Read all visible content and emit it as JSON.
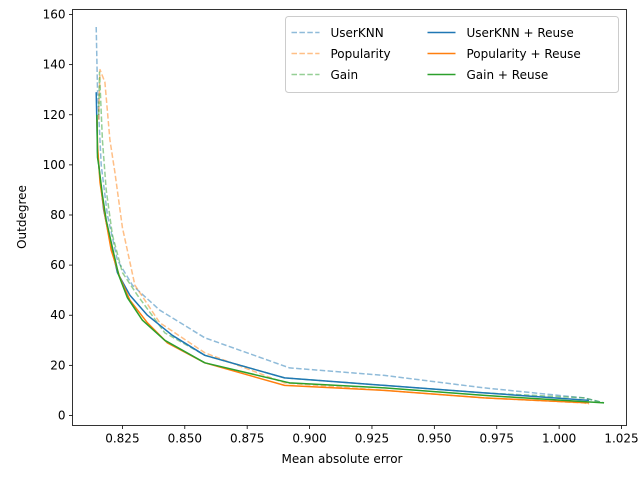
{
  "chart_data": {
    "type": "line",
    "title": "",
    "xlabel": "Mean absolute error",
    "ylabel": "Outdegree",
    "xlim": [
      0.805,
      1.027
    ],
    "ylim": [
      -4,
      162
    ],
    "xticks": [
      0.825,
      0.85,
      0.875,
      0.9,
      0.925,
      0.95,
      0.975,
      1.0,
      1.025
    ],
    "xtick_labels": [
      "0.825",
      "0.850",
      "0.875",
      "0.900",
      "0.925",
      "0.950",
      "0.975",
      "1.000",
      "1.025"
    ],
    "yticks": [
      0,
      20,
      40,
      60,
      80,
      100,
      120,
      140,
      160
    ],
    "ytick_labels": [
      "0",
      "20",
      "40",
      "60",
      "80",
      "100",
      "120",
      "140",
      "160"
    ],
    "grid": false,
    "legend": {
      "position": "top-right",
      "columns": 2
    },
    "series": [
      {
        "name": "UserKNN",
        "color": "#1f77b4",
        "dashed": true,
        "faded": true,
        "x": [
          0.8145,
          0.815,
          0.8165,
          0.819,
          0.823,
          0.829,
          0.84,
          0.858,
          0.892,
          0.93,
          0.97,
          1.01,
          1.018
        ],
        "y": [
          155,
          130,
          100,
          80,
          62,
          52,
          42,
          31,
          19,
          16,
          11,
          7,
          5
        ]
      },
      {
        "name": "Popularity",
        "color": "#ff7f0e",
        "dashed": true,
        "faded": true,
        "x": [
          0.8155,
          0.816,
          0.818,
          0.82,
          0.822,
          0.825,
          0.83,
          0.84,
          0.858,
          0.89,
          0.93,
          0.97,
          1.01,
          1.012
        ],
        "y": [
          118,
          138,
          133,
          110,
          97,
          75,
          52,
          37,
          25,
          13,
          10,
          7,
          5,
          4.5
        ]
      },
      {
        "name": "Gain",
        "color": "#2ca02c",
        "dashed": true,
        "faded": true,
        "x": [
          0.8155,
          0.8158,
          0.817,
          0.8185,
          0.821,
          0.825,
          0.831,
          0.842,
          0.858,
          0.89,
          0.93,
          0.97,
          1.01,
          1.018
        ],
        "y": [
          120,
          137,
          110,
          90,
          72,
          57,
          48,
          33,
          24,
          15,
          12,
          9,
          7,
          5
        ]
      },
      {
        "name": "UserKNN + Reuse",
        "color": "#1f77b4",
        "dashed": false,
        "faded": false,
        "x": [
          0.8145,
          0.815,
          0.816,
          0.8175,
          0.82,
          0.823,
          0.828,
          0.835,
          0.845,
          0.858,
          0.89,
          0.93,
          0.97,
          1.012
        ],
        "y": [
          129,
          105,
          95,
          82,
          70,
          57,
          48,
          40,
          32,
          24,
          15,
          12,
          9,
          6
        ]
      },
      {
        "name": "Popularity + Reuse",
        "color": "#ff7f0e",
        "dashed": false,
        "faded": false,
        "x": [
          0.8148,
          0.815,
          0.816,
          0.818,
          0.8205,
          0.824,
          0.828,
          0.835,
          0.843,
          0.858,
          0.89,
          0.93,
          0.97,
          1.012
        ],
        "y": [
          118,
          108,
          93,
          80,
          66,
          55,
          46,
          37,
          29,
          21,
          12,
          10,
          7,
          5
        ]
      },
      {
        "name": "Gain + Reuse",
        "color": "#2ca02c",
        "dashed": false,
        "faded": false,
        "x": [
          0.8148,
          0.815,
          0.8155,
          0.817,
          0.8185,
          0.821,
          0.8235,
          0.827,
          0.833,
          0.842,
          0.858,
          0.892,
          0.93,
          0.97,
          1.018
        ],
        "y": [
          120,
          103,
          100,
          88,
          78,
          67,
          56,
          47,
          38,
          30,
          21,
          13,
          11,
          8,
          5
        ]
      }
    ]
  }
}
